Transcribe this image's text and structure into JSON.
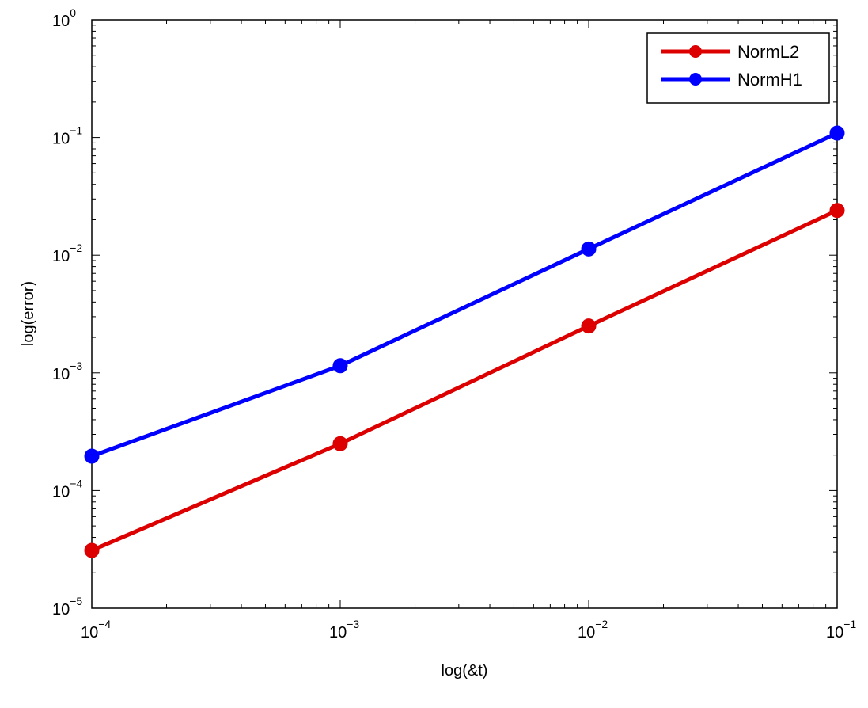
{
  "chart_data": {
    "type": "line",
    "title": "",
    "xlabel": "log(&t)",
    "ylabel": "log(error)",
    "xscale": "log",
    "yscale": "log",
    "xlim": [
      0.0001,
      0.1
    ],
    "ylim": [
      1e-05,
      1
    ],
    "x_ticks": [
      {
        "base": "10",
        "exp": "-4"
      },
      {
        "base": "10",
        "exp": "-3"
      },
      {
        "base": "10",
        "exp": "-2"
      },
      {
        "base": "10",
        "exp": "-1"
      }
    ],
    "y_ticks": [
      {
        "base": "10",
        "exp": "-5"
      },
      {
        "base": "10",
        "exp": "-4"
      },
      {
        "base": "10",
        "exp": "-3"
      },
      {
        "base": "10",
        "exp": "-2"
      },
      {
        "base": "10",
        "exp": "-1"
      },
      {
        "base": "10",
        "exp": "0"
      }
    ],
    "grid": false,
    "legend_position": "top-right",
    "x": [
      0.0001,
      0.001,
      0.01,
      0.1
    ],
    "series": [
      {
        "name": "NormL2",
        "color": "#dd0000",
        "values": [
          3.1e-05,
          0.00025,
          0.0025,
          0.024
        ]
      },
      {
        "name": "NormH1",
        "color": "#0000ff",
        "values": [
          0.000196,
          0.00115,
          0.0113,
          0.109
        ]
      }
    ]
  }
}
